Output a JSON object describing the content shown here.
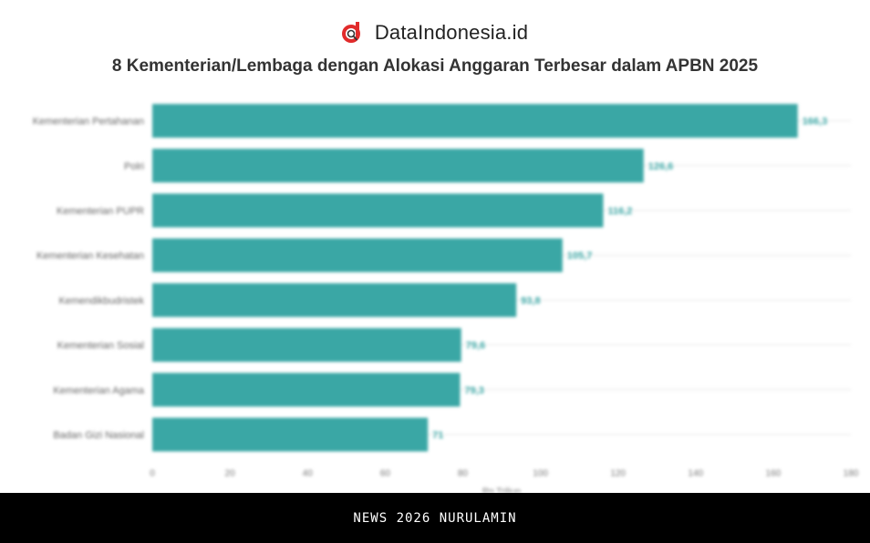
{
  "brand": {
    "name": "DataIndonesia.id",
    "accent": "#e12b2b",
    "logo_icon": "magnifier-d-logo-icon"
  },
  "chart_data": {
    "type": "bar",
    "orientation": "horizontal",
    "title": "8 Kementerian/Lembaga dengan Alokasi Anggaran Terbesar dalam APBN 2025",
    "xlabel": "Rp Triliun",
    "ylabel": "",
    "xlim": [
      0,
      180
    ],
    "xticks": [
      0,
      20,
      40,
      60,
      80,
      100,
      120,
      140,
      160,
      180
    ],
    "grid": true,
    "legend": "none",
    "bar_color": "#3aa7a5",
    "categories": [
      "Kementerian Pertahanan",
      "Polri",
      "Kementerian PUPR",
      "Kementerian Kesehatan",
      "Kemendikbudristek",
      "Kementerian Sosial",
      "Kementerian Agama",
      "Badan Gizi Nasional"
    ],
    "values": [
      166.3,
      126.6,
      116.2,
      105.7,
      93.8,
      79.6,
      79.3,
      71
    ],
    "labels": [
      "166,3",
      "126,6",
      "116,2",
      "105,7",
      "93,8",
      "79,6",
      "79,3",
      "71"
    ]
  },
  "footer": {
    "text": "NEWS 2026 NURULAMIN"
  }
}
